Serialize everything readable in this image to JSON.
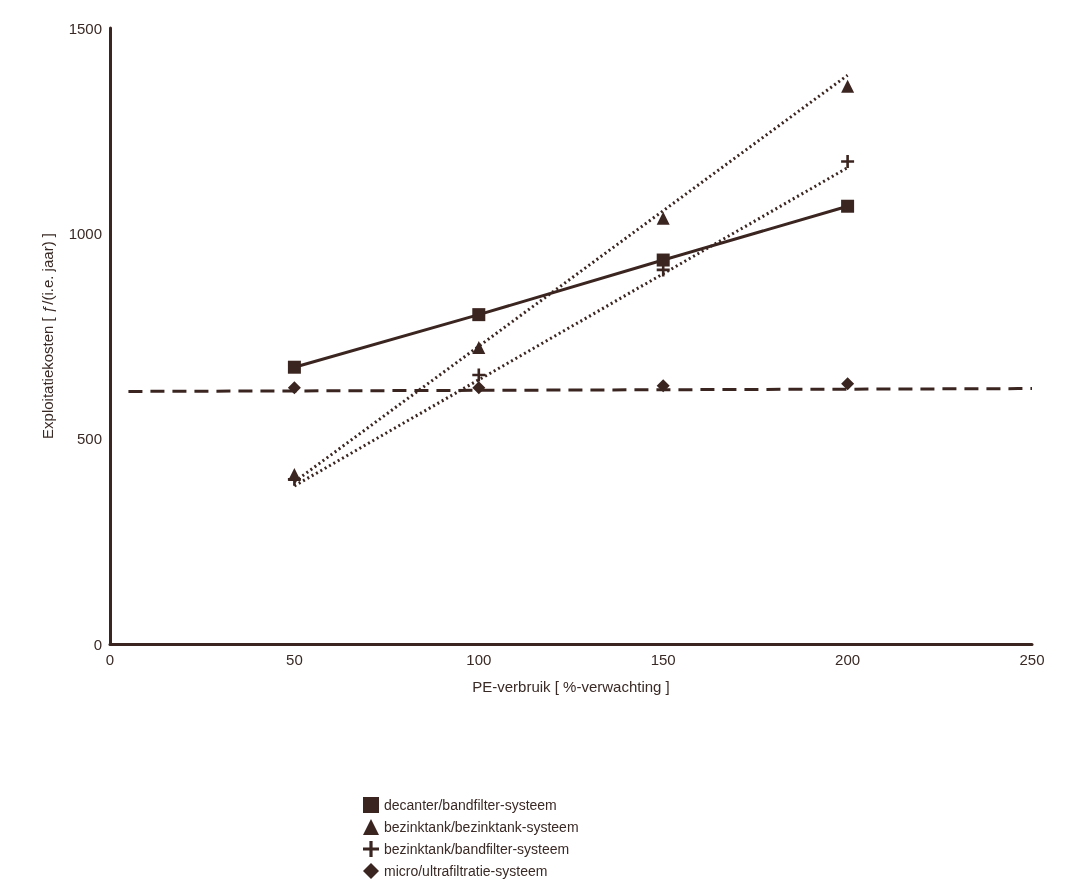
{
  "chart_data": {
    "type": "line",
    "xlabel": "PE-verbruik [ %-verwachting ]",
    "ylabel": "Exploitatiekosten [ ƒ/(i.e. jaar) ]",
    "x": [
      50,
      100,
      150,
      200
    ],
    "xlim": [
      0,
      250
    ],
    "xticks": [
      0,
      50,
      100,
      150,
      200,
      250
    ],
    "ylim": [
      0,
      1500
    ],
    "yticks": [
      0,
      500,
      1000,
      1500
    ],
    "grid": false,
    "legend": "bottom",
    "series": [
      {
        "name": "decanter/bandfilter-systeem",
        "marker": "square",
        "line_style": "solid",
        "color": "#3b2520",
        "values": [
          674,
          802,
          935,
          1066
        ]
      },
      {
        "name": "bezinktank/bezinktank-systeem",
        "type": "scatter",
        "marker": "triangle",
        "color": "#3b2520",
        "values": [
          413,
          722,
          1037,
          1358
        ]
      },
      {
        "name": "bezinktank/bandfilter-systeem",
        "type": "scatter",
        "marker": "cross",
        "color": "#3b2520",
        "values": [
          401,
          655,
          911,
          1175
        ]
      },
      {
        "name": "micro/ultrafiltratie-systeem",
        "type": "scatter",
        "marker": "diamond",
        "color": "#3b2520",
        "values": [
          624,
          624,
          629,
          634
        ]
      },
      {
        "type": "line",
        "marker": "none",
        "line_style": "dotted",
        "color": "#3b2520",
        "x": [
          50,
          200
        ],
        "values": [
          395,
          1385
        ]
      },
      {
        "type": "line",
        "marker": "none",
        "line_style": "dotted",
        "color": "#3b2520",
        "x": [
          50,
          200
        ],
        "values": [
          385,
          1160
        ]
      },
      {
        "type": "line",
        "marker": "none",
        "line_style": "dashed",
        "color": "#3b2520",
        "x": [
          5,
          250
        ],
        "values": [
          615,
          622
        ]
      }
    ]
  }
}
